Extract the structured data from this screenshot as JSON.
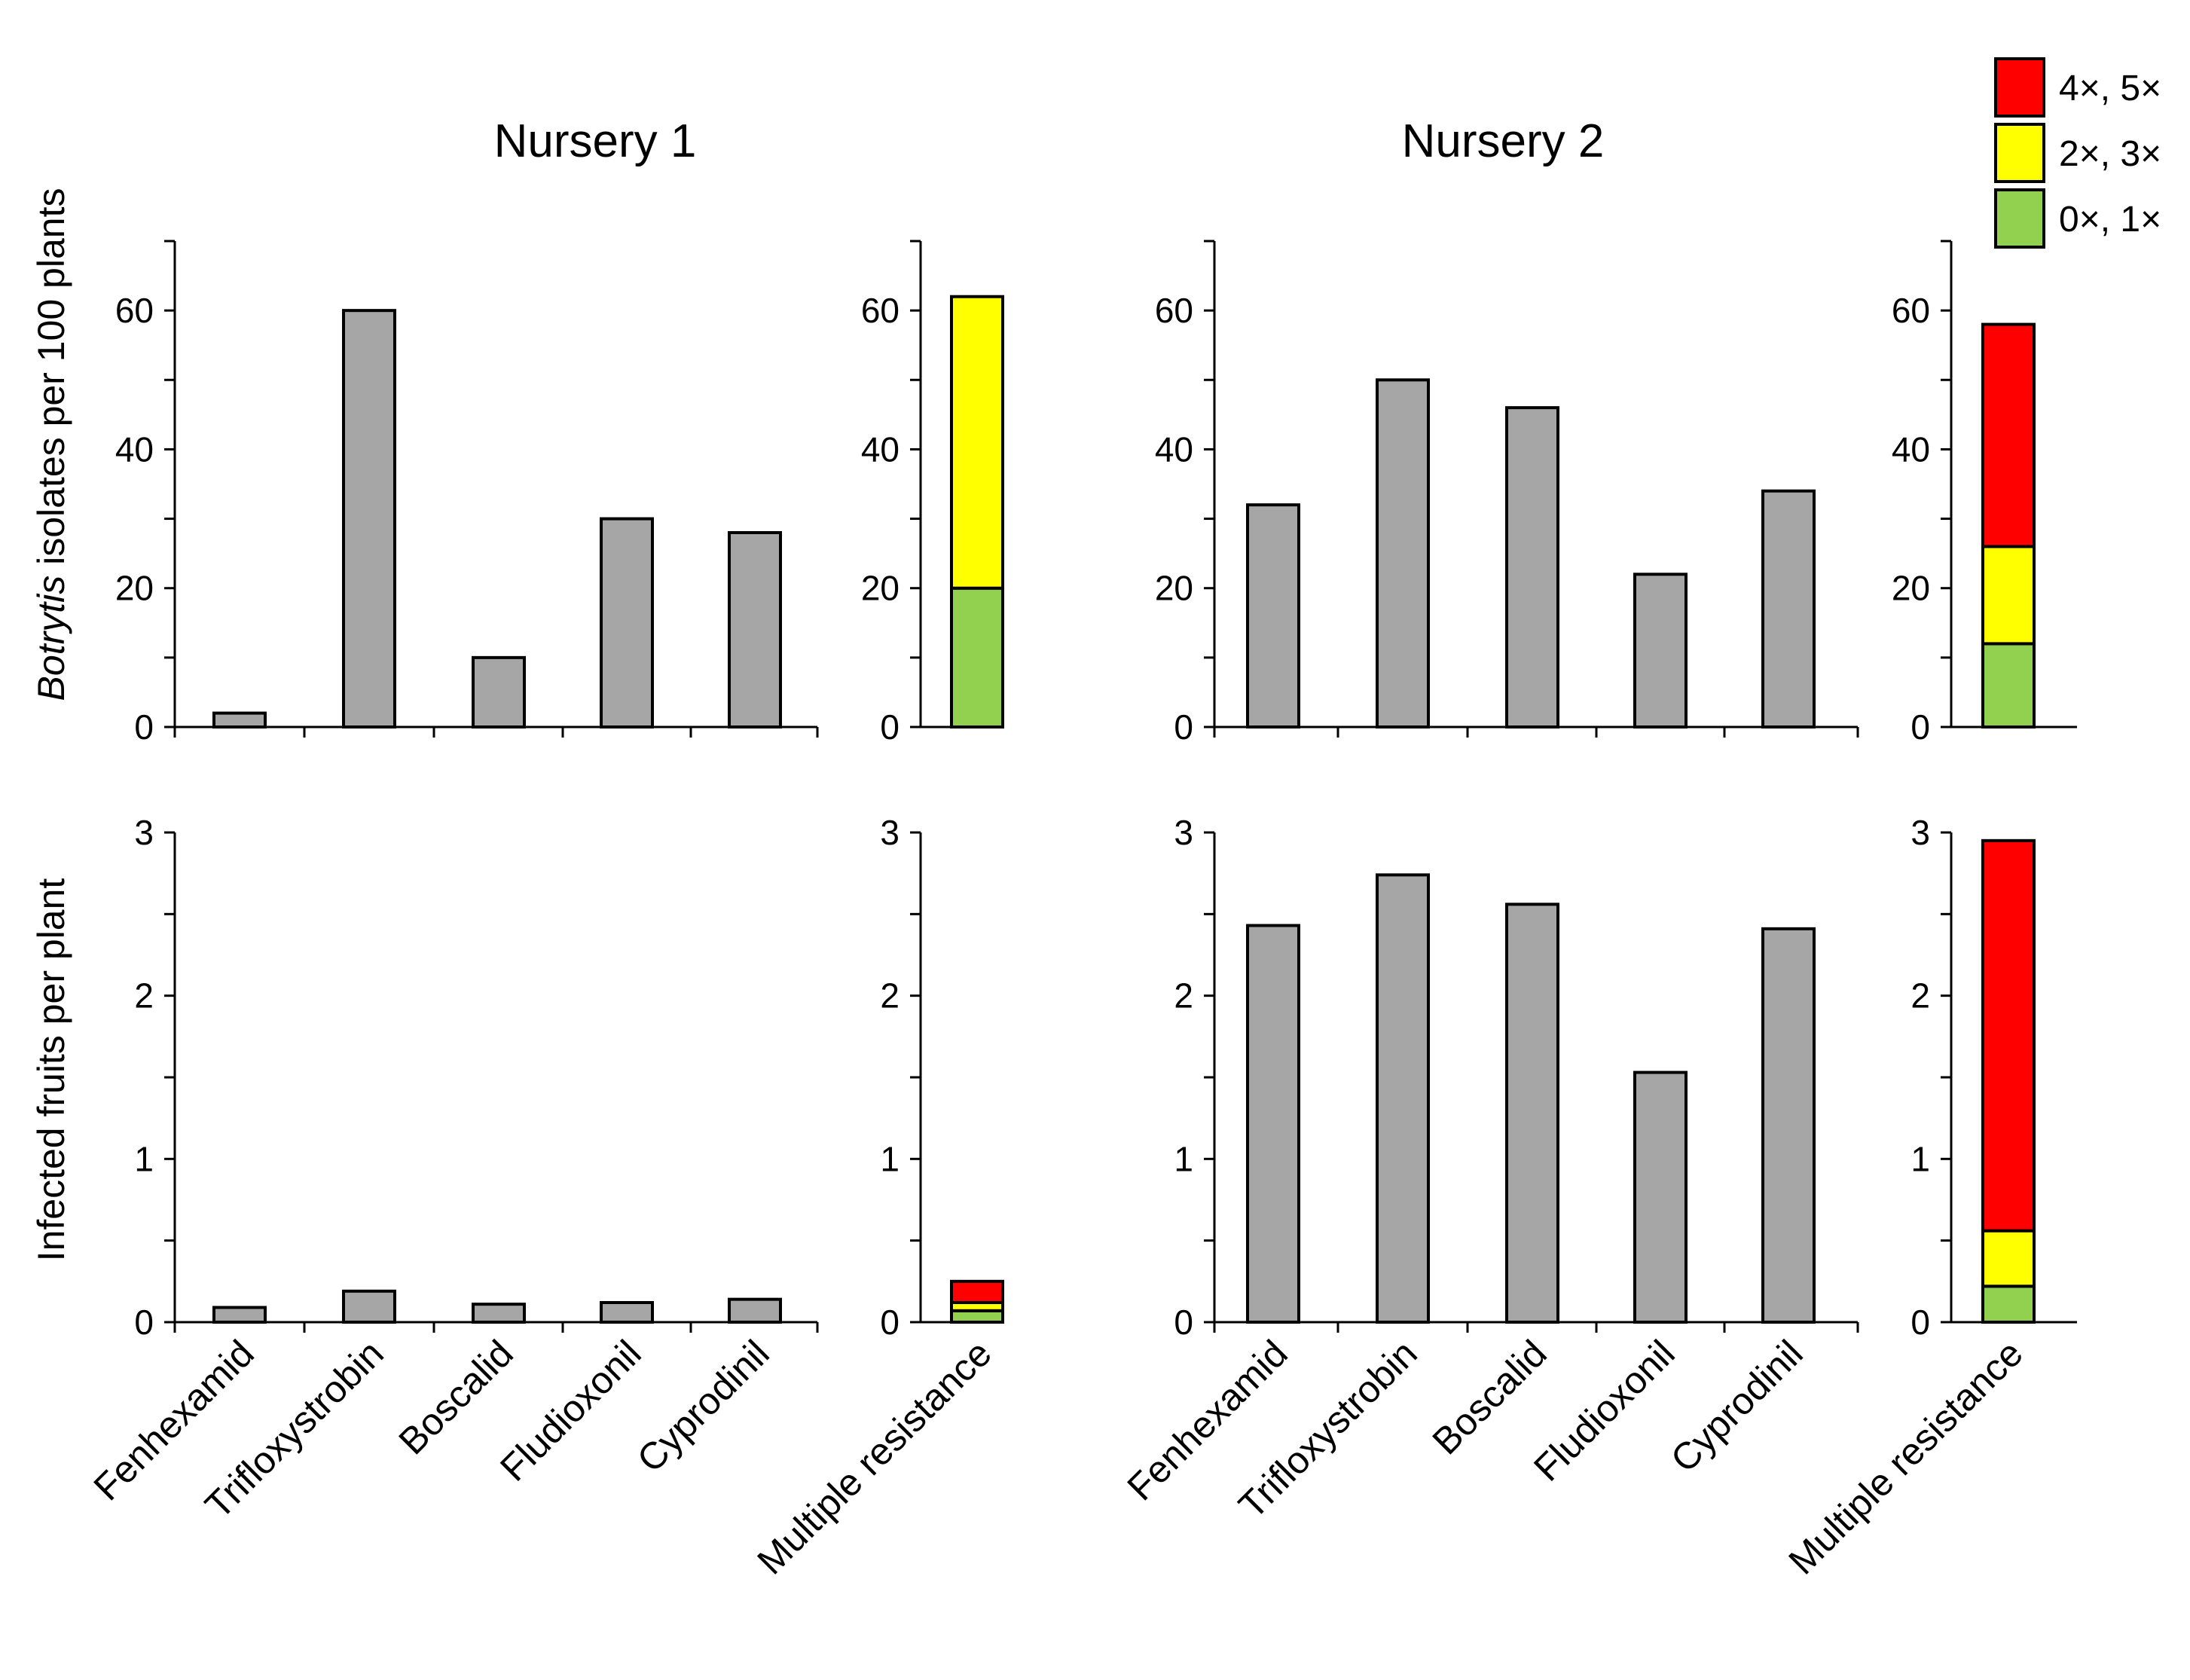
{
  "chart_data": {
    "type": "bar",
    "panel_titles": [
      "Nursery 1",
      "Nursery 2"
    ],
    "y_labels": {
      "top_prefix_italic": "Botrytis",
      "top_rest": " isolates per 100 plants",
      "bottom": "Infected fruits per plant"
    },
    "categories": [
      "Fenhexamid",
      "Trifloxystrobin",
      "Boscalid",
      "Fludioxonil",
      "Cyprodinil"
    ],
    "multiple_category": "Multiple resistance",
    "legend": [
      {
        "label": "4×, 5×",
        "color": "#ff0000"
      },
      {
        "label": "2×, 3×",
        "color": "#ffff00"
      },
      {
        "label": "0×, 1×",
        "color": "#92d050"
      }
    ],
    "colors": {
      "bar": "#a6a6a6"
    },
    "rows": [
      {
        "name": "isolates",
        "ylim": [
          0,
          70
        ],
        "yticks": [
          0,
          20,
          40,
          60
        ],
        "nursery1": {
          "values": [
            2,
            60,
            10,
            30,
            28
          ],
          "stack": [
            20,
            42,
            0
          ]
        },
        "nursery2": {
          "values": [
            32,
            50,
            46,
            22,
            34
          ],
          "stack": [
            12,
            14,
            32
          ]
        }
      },
      {
        "name": "infected_fruits",
        "ylim": [
          0,
          3
        ],
        "yticks": [
          0,
          1,
          2,
          3
        ],
        "nursery1": {
          "values": [
            0.09,
            0.19,
            0.11,
            0.12,
            0.14
          ],
          "stack": [
            0.07,
            0.05,
            0.13
          ]
        },
        "nursery2": {
          "values": [
            2.43,
            2.74,
            2.56,
            1.53,
            2.41
          ],
          "stack": [
            0.22,
            0.34,
            2.39
          ]
        }
      }
    ]
  }
}
